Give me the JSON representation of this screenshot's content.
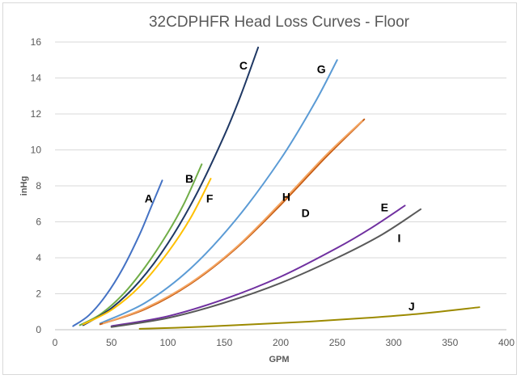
{
  "chart_data": {
    "type": "line",
    "title": "32CDPHFR Head Loss Curves - Floor",
    "xlabel": "GPM",
    "ylabel": "inHg",
    "xlim": [
      0,
      400
    ],
    "ylim": [
      0,
      16
    ],
    "xticks": [
      0,
      50,
      100,
      150,
      200,
      250,
      300,
      350,
      400
    ],
    "yticks": [
      0,
      2,
      4,
      6,
      8,
      10,
      12,
      14,
      16
    ],
    "grid": "horizontal",
    "legend": "none",
    "series": [
      {
        "name": "A",
        "color": "#4472C4",
        "x": [
          16,
          30,
          45,
          60,
          75,
          85,
          95
        ],
        "y": [
          0.2,
          0.8,
          1.9,
          3.4,
          5.3,
          6.8,
          8.3
        ]
      },
      {
        "name": "B",
        "color": "#70AD47",
        "x": [
          22,
          40,
          60,
          80,
          100,
          115,
          130
        ],
        "y": [
          0.25,
          0.85,
          1.95,
          3.5,
          5.4,
          7.1,
          9.2
        ]
      },
      {
        "name": "C",
        "color": "#1F3864",
        "x": [
          25,
          50,
          75,
          100,
          125,
          150,
          165,
          180
        ],
        "y": [
          0.25,
          1.2,
          2.7,
          4.8,
          7.5,
          10.8,
          13.1,
          15.7
        ]
      },
      {
        "name": "F",
        "color": "#FFC000",
        "x": [
          25,
          50,
          75,
          100,
          120,
          138
        ],
        "y": [
          0.3,
          1.1,
          2.4,
          4.3,
          6.2,
          8.4
        ]
      },
      {
        "name": "G",
        "color": "#5B9BD5",
        "x": [
          40,
          80,
          120,
          160,
          200,
          230,
          250
        ],
        "y": [
          0.35,
          1.5,
          3.4,
          6.1,
          9.5,
          12.6,
          15.0
        ]
      },
      {
        "name": "H",
        "color": "#C55A11",
        "x": [
          40,
          80,
          120,
          160,
          200,
          240,
          274
        ],
        "y": [
          0.3,
          1.15,
          2.55,
          4.5,
          6.95,
          9.6,
          11.7
        ]
      },
      {
        "name": "D",
        "color": "#F4A460",
        "x": [
          43,
          80,
          120,
          160,
          200,
          240,
          272
        ],
        "y": [
          0.35,
          1.2,
          2.6,
          4.55,
          7.05,
          9.7,
          11.6
        ]
      },
      {
        "name": "E",
        "color": "#7030A0",
        "x": [
          50,
          100,
          150,
          200,
          250,
          280,
          310
        ],
        "y": [
          0.2,
          0.75,
          1.7,
          2.95,
          4.55,
          5.65,
          6.9
        ]
      },
      {
        "name": "I",
        "color": "#595959",
        "x": [
          50,
          100,
          150,
          200,
          250,
          290,
          324
        ],
        "y": [
          0.15,
          0.65,
          1.5,
          2.6,
          4.0,
          5.3,
          6.7
        ]
      },
      {
        "name": "J",
        "color": "#9C8A00",
        "x": [
          75,
          125,
          175,
          225,
          275,
          325,
          376
        ],
        "y": [
          0.05,
          0.15,
          0.3,
          0.45,
          0.65,
          0.9,
          1.25
        ]
      }
    ],
    "annotations": [
      {
        "text": "A",
        "x": 83,
        "y": 7.3
      },
      {
        "text": "B",
        "x": 119,
        "y": 8.4
      },
      {
        "text": "C",
        "x": 167,
        "y": 14.7
      },
      {
        "text": "F",
        "x": 137,
        "y": 7.3
      },
      {
        "text": "G",
        "x": 236,
        "y": 14.5
      },
      {
        "text": "H",
        "x": 205,
        "y": 7.4
      },
      {
        "text": "D",
        "x": 222,
        "y": 6.5
      },
      {
        "text": "E",
        "x": 292,
        "y": 6.8
      },
      {
        "text": "I",
        "x": 305,
        "y": 5.1
      },
      {
        "text": "J",
        "x": 316,
        "y": 1.3
      }
    ]
  }
}
